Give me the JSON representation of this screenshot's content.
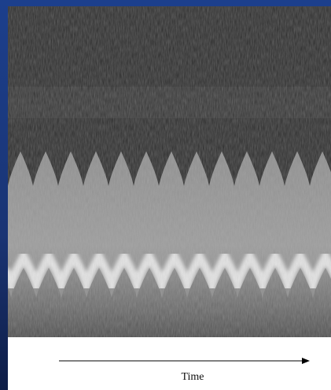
{
  "label": "Time"
}
